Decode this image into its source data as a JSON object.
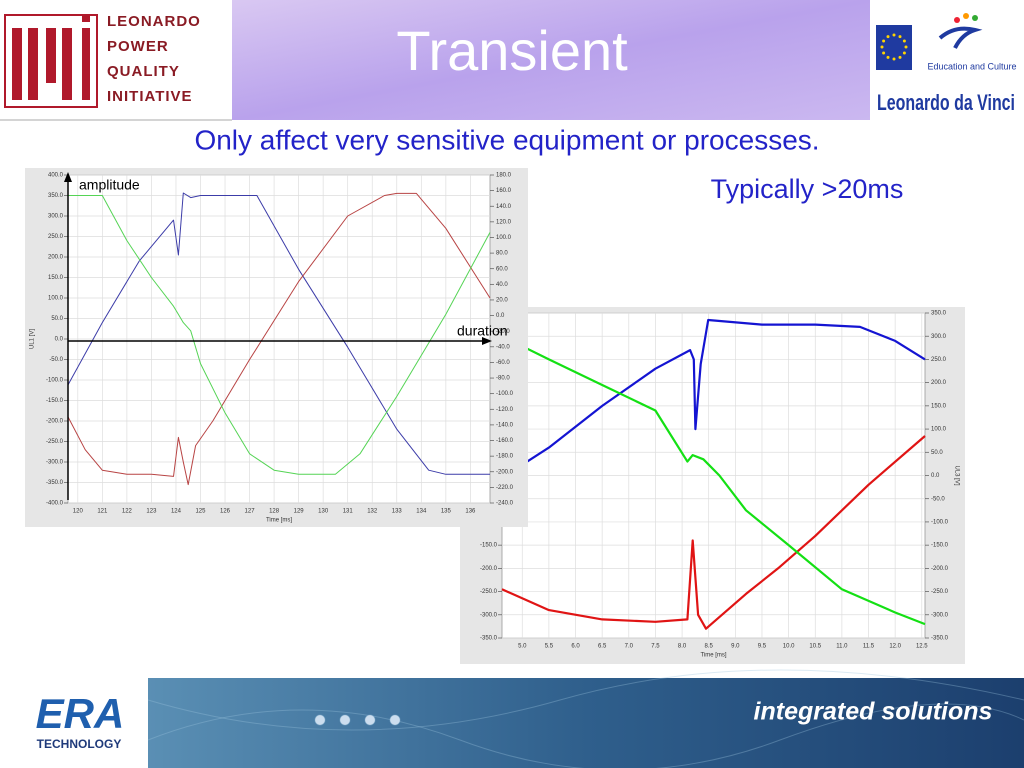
{
  "header": {
    "logo_lines": [
      "LEONARDO",
      "POWER",
      "QUALITY",
      "INITIATIVE"
    ],
    "title": "Transient",
    "partner_caption": "Education and Culture",
    "programme": "Leonardo da Vinci"
  },
  "body": {
    "statement": "Only affect very sensitive equipment or processes.",
    "duration_note": "Typically >20ms",
    "annotations": {
      "amplitude": "amplitude",
      "duration": "duration"
    }
  },
  "footer": {
    "brand": "ERA",
    "brand_sub": "TECHNOLOGY",
    "slogan": "integrated solutions"
  },
  "chart_data": [
    {
      "type": "line",
      "xlabel": "Time [ms]",
      "ylabel": "UL1 [V]",
      "xlim": [
        119.6,
        136.8
      ],
      "xticks": [
        120,
        121,
        122,
        123,
        124,
        125,
        126,
        127,
        128,
        129,
        130,
        131,
        132,
        133,
        134,
        135,
        136
      ],
      "ylim": [
        -400,
        400
      ],
      "yticks": [
        {
          "value": 400,
          "label": "400.0"
        },
        {
          "value": 350,
          "label": "350.0"
        },
        {
          "value": 300,
          "label": "300.0"
        },
        {
          "value": 250,
          "label": "250.0"
        },
        {
          "value": 200,
          "label": "200.0"
        },
        {
          "value": 150,
          "label": "150.0"
        },
        {
          "value": 100,
          "label": "100.0"
        },
        {
          "value": 50,
          "label": "50.0"
        },
        {
          "value": 0,
          "label": "0.0"
        },
        {
          "value": -50,
          "label": "-50.0"
        },
        {
          "value": -100,
          "label": "-100.0"
        },
        {
          "value": -150,
          "label": "-150.0"
        },
        {
          "value": -200,
          "label": "-200.0"
        },
        {
          "value": -250,
          "label": "-250.0"
        },
        {
          "value": -300,
          "label": "-300.0"
        },
        {
          "value": -350,
          "label": "-350.0"
        },
        {
          "value": -400,
          "label": "-400.0"
        }
      ],
      "y2lim": [
        -240,
        180
      ],
      "y2ticks": [
        {
          "value": 180,
          "label": "180.0"
        },
        {
          "value": 160,
          "label": "160.0"
        },
        {
          "value": 140,
          "label": "140.0"
        },
        {
          "value": 120,
          "label": "120.0"
        },
        {
          "value": 100,
          "label": "100.0"
        },
        {
          "value": 80,
          "label": "80.0"
        },
        {
          "value": 60,
          "label": "60.0"
        },
        {
          "value": 40,
          "label": "40.0"
        },
        {
          "value": 20,
          "label": "20.0"
        },
        {
          "value": 0,
          "label": "0.0"
        },
        {
          "value": -20,
          "label": "-20.0"
        },
        {
          "value": -40,
          "label": "-40.0"
        },
        {
          "value": -60,
          "label": "-60.0"
        },
        {
          "value": -80,
          "label": "-80.0"
        },
        {
          "value": -100,
          "label": "-100.0"
        },
        {
          "value": -120,
          "label": "-120.0"
        },
        {
          "value": -140,
          "label": "-140.0"
        },
        {
          "value": -160,
          "label": "-160.0"
        },
        {
          "value": -180,
          "label": "-180.0"
        },
        {
          "value": -200,
          "label": "-200.0"
        },
        {
          "value": -220,
          "label": "-220.0"
        },
        {
          "value": -240,
          "label": "-240.0"
        }
      ],
      "grid": true,
      "series": [
        {
          "color": "#3c3ca8",
          "x": [
            119.6,
            121,
            122.5,
            123.9,
            124.1,
            124.3,
            124.6,
            125,
            127.3,
            129,
            131,
            133,
            134.3,
            135,
            136.8
          ],
          "values": [
            -112,
            40,
            190,
            290,
            205,
            356,
            345,
            350,
            350,
            170,
            -20,
            -220,
            -320,
            -330,
            -330
          ]
        },
        {
          "color": "#b84444",
          "x": [
            119.6,
            120.3,
            121,
            122,
            123,
            123.9,
            124.1,
            124.3,
            124.5,
            124.8,
            125.5,
            127,
            129,
            131,
            132.5,
            133,
            133.8,
            135,
            136.8
          ],
          "values": [
            -190,
            -270,
            -320,
            -330,
            -330,
            -335,
            -240,
            -300,
            -355,
            -260,
            -200,
            -50,
            140,
            300,
            350,
            355,
            355,
            270,
            100
          ]
        },
        {
          "color": "#55d455",
          "x": [
            119.6,
            121,
            122,
            123,
            123.9,
            124.1,
            124.3,
            124.6,
            125,
            126,
            127,
            128,
            129,
            130.5,
            131.5,
            133,
            135,
            136.8
          ],
          "values": [
            350,
            350,
            240,
            150,
            80,
            60,
            40,
            20,
            -60,
            -180,
            -280,
            -320,
            -330,
            -330,
            -280,
            -140,
            60,
            260
          ]
        }
      ]
    },
    {
      "type": "line",
      "xlabel": "Time [ms]",
      "ylabel": "UL3 [V]",
      "xlim": [
        4.62,
        12.56
      ],
      "xticks": [
        {
          "value": 5,
          "label": "5.0"
        },
        5.5,
        {
          "value": 6,
          "label": "6.0"
        },
        6.5,
        {
          "value": 7,
          "label": "7.0"
        },
        7.5,
        {
          "value": 8,
          "label": "8.0"
        },
        8.5,
        {
          "value": 9,
          "label": "9.0"
        },
        9.5,
        {
          "value": 10,
          "label": "10.0"
        },
        10.5,
        {
          "value": 11,
          "label": "11.0"
        },
        11.5,
        {
          "value": 12,
          "label": "12.0"
        },
        12.5
      ],
      "ylim": [
        -350,
        350
      ],
      "yticks": [
        {
          "value": 350,
          "label": "350.0"
        },
        {
          "value": 300,
          "label": "300.0"
        },
        {
          "value": 250,
          "label": "250.0"
        },
        {
          "value": 200,
          "label": "200.0"
        },
        {
          "value": 150,
          "label": "150.0"
        },
        {
          "value": 100,
          "label": "100.0"
        },
        {
          "value": 50,
          "label": "50.0"
        },
        {
          "value": 0,
          "label": "0.0"
        },
        {
          "value": -50,
          "label": "-50.0"
        },
        {
          "value": -100,
          "label": "-100.0"
        },
        {
          "value": -150,
          "label": "-150.0"
        },
        {
          "value": -200,
          "label": "-200.0"
        },
        {
          "value": -250,
          "label": "-250.0"
        },
        {
          "value": -300,
          "label": "-300.0"
        },
        {
          "value": -350,
          "label": "-350.0"
        }
      ],
      "grid": true,
      "series": [
        {
          "color": "#1414d2",
          "x": [
            4.62,
            5.5,
            6.5,
            7.5,
            8.15,
            8.22,
            8.25,
            8.35,
            8.49,
            9.5,
            10.5,
            11.34,
            12,
            12.56
          ],
          "values": [
            -5,
            60,
            150,
            230,
            270,
            250,
            100,
            240,
            335,
            325,
            325,
            320,
            290,
            250
          ]
        },
        {
          "color": "#e01414",
          "x": [
            4.62,
            5.5,
            6.5,
            7.5,
            8.1,
            8.2,
            8.3,
            8.45,
            9.2,
            9.8,
            10.5,
            11.5,
            12.56
          ],
          "values": [
            -245,
            -290,
            -310,
            -315,
            -310,
            -140,
            -300,
            -330,
            -255,
            -200,
            -130,
            -20,
            85
          ]
        },
        {
          "color": "#14e014",
          "x": [
            4.62,
            5.5,
            6.5,
            7.5,
            8.1,
            8.2,
            8.4,
            8.7,
            9.2,
            10,
            11,
            12,
            12.56
          ],
          "values": [
            300,
            250,
            195,
            140,
            30,
            44,
            35,
            0,
            -75,
            -150,
            -245,
            -295,
            -320
          ]
        }
      ]
    }
  ]
}
